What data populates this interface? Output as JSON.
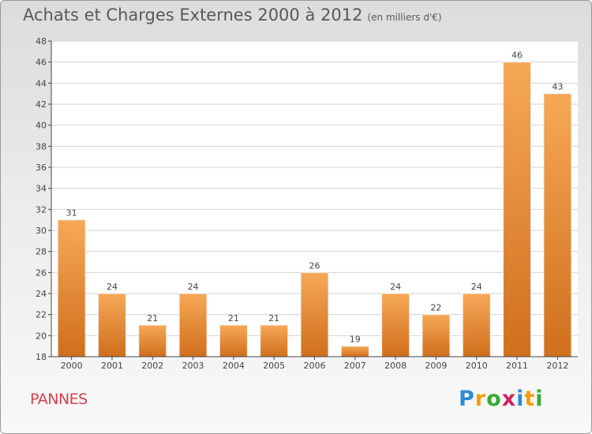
{
  "header": {
    "title": "Achats et Charges Externes 2000 à 2012",
    "subtitle": "(en milliers d'€)"
  },
  "footer": {
    "town": "PANNES"
  },
  "logo": {
    "letters": [
      "P",
      "r",
      "o",
      "x",
      "i",
      "t",
      "i"
    ],
    "colors": [
      "#2e8bd6",
      "#f39c12",
      "#3aa935",
      "#d4245f",
      "#2e8bd6",
      "#f39c12",
      "#3aa935"
    ]
  },
  "chart_data": {
    "type": "bar",
    "title": "Achats et Charges Externes 2000 à 2012",
    "subtitle": "(en milliers d'€)",
    "categories": [
      "2000",
      "2001",
      "2002",
      "2003",
      "2004",
      "2005",
      "2006",
      "2007",
      "2008",
      "2009",
      "2010",
      "2011",
      "2012"
    ],
    "values": [
      31,
      24,
      21,
      24,
      21,
      21,
      26,
      19,
      24,
      22,
      24,
      46,
      43
    ],
    "ylim": [
      18,
      48
    ],
    "yticks": [
      18,
      20,
      22,
      24,
      26,
      28,
      30,
      32,
      34,
      36,
      38,
      40,
      42,
      44,
      46,
      48
    ],
    "grid": true,
    "colors": {
      "bar_top": "#f6a857",
      "bar_bottom": "#d06f1c",
      "grid": "#d2d2d2",
      "axis": "#444444"
    }
  }
}
